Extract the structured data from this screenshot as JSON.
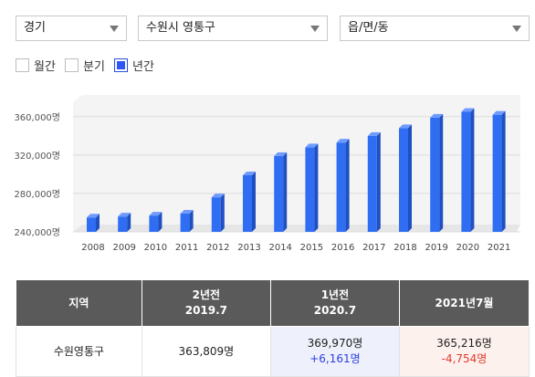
{
  "top_hint": "",
  "filters": {
    "province": "경기",
    "city": "수원시 영통구",
    "town": "읍/면/동"
  },
  "periods": [
    {
      "label": "월간",
      "checked": false
    },
    {
      "label": "분기",
      "checked": false
    },
    {
      "label": "년간",
      "checked": true
    }
  ],
  "colors": {
    "bar_front": "#2f6ef2",
    "bar_side": "#1f4fc0",
    "bar_top": "#6f9bff",
    "header_bg": "#5a5a5a",
    "increase": "#2a3ee0",
    "decrease": "#e03a2a"
  },
  "chart_data": {
    "type": "bar",
    "categories": [
      "2008",
      "2009",
      "2010",
      "2011",
      "2012",
      "2013",
      "2014",
      "2015",
      "2016",
      "2017",
      "2018",
      "2019",
      "2020",
      "2021"
    ],
    "values": [
      255000,
      256000,
      257000,
      259000,
      276000,
      299000,
      319000,
      328000,
      333000,
      340000,
      348000,
      359000,
      365000,
      362000
    ],
    "y_ticks": [
      "240,000명",
      "280,000명",
      "320,000명",
      "360,000명"
    ],
    "ylim": [
      240000,
      375000
    ],
    "grid": true,
    "title": "",
    "xlabel": "",
    "ylabel": ""
  },
  "table": {
    "headers": [
      {
        "line1": "지역",
        "line2": ""
      },
      {
        "line1": "2년전",
        "line2": "2019.7"
      },
      {
        "line1": "1년전",
        "line2": "2020.7"
      },
      {
        "line1": "2021년7월",
        "line2": ""
      }
    ],
    "row": {
      "region": "수원영통구",
      "two_years_ago": "363,809명",
      "one_year_ago": "369,970명",
      "one_year_delta": "+6,161명",
      "current": "365,216명",
      "current_delta": "-4,754명"
    }
  }
}
